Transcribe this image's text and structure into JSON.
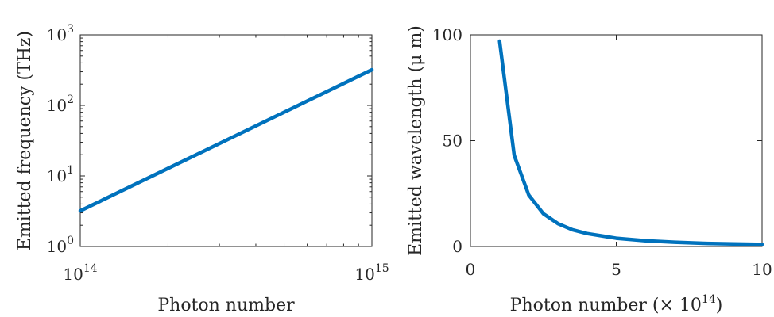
{
  "chart_data": [
    {
      "type": "line",
      "x_scale": "log",
      "y_scale": "log",
      "xlim": [
        100000000000000.0,
        1000000000000000.0
      ],
      "ylim": [
        1,
        1000
      ],
      "xlabel": "Photon number",
      "ylabel": "Emitted frequency (THz)",
      "x_ticks": [
        {
          "value": 100000000000000.0,
          "base": "10",
          "exp": "14"
        },
        {
          "value": 1000000000000000.0,
          "base": "10",
          "exp": "15"
        }
      ],
      "y_ticks": [
        {
          "value": 1,
          "base": "10",
          "exp": "0"
        },
        {
          "value": 10,
          "base": "10",
          "exp": "1"
        },
        {
          "value": 100,
          "base": "10",
          "exp": "2"
        },
        {
          "value": 1000,
          "base": "10",
          "exp": "3"
        }
      ],
      "series": [
        {
          "color": "#0072bd",
          "x": [
            100000000000000.0,
            200000000000000.0,
            300000000000000.0,
            400000000000000.0,
            500000000000000.0,
            600000000000000.0,
            700000000000000.0,
            800000000000000.0,
            900000000000000.0,
            1000000000000000.0
          ],
          "y": [
            3.2,
            12.8,
            28.8,
            51.2,
            80,
            115.2,
            156.8,
            204.8,
            259.2,
            320
          ]
        }
      ],
      "grid": false
    },
    {
      "type": "line",
      "x_scale": "linear",
      "y_scale": "linear",
      "xlim": [
        0,
        10
      ],
      "ylim": [
        0,
        100
      ],
      "xlabel_text": "Photon number (× 10",
      "xlabel_exp": "14",
      "xlabel_close": ")",
      "ylabel": "Emitted wavelength (μ m)",
      "x_ticks": [
        0,
        5,
        10
      ],
      "y_ticks": [
        0,
        50,
        100
      ],
      "series": [
        {
          "color": "#0072bd",
          "x": [
            1,
            1.5,
            2,
            2.5,
            3,
            3.5,
            4,
            5,
            6,
            7,
            8,
            9,
            10
          ],
          "y": [
            97,
            43.1,
            24.3,
            15.5,
            10.8,
            7.9,
            6.1,
            3.9,
            2.7,
            2.0,
            1.5,
            1.2,
            0.97
          ]
        }
      ],
      "grid": false
    }
  ]
}
